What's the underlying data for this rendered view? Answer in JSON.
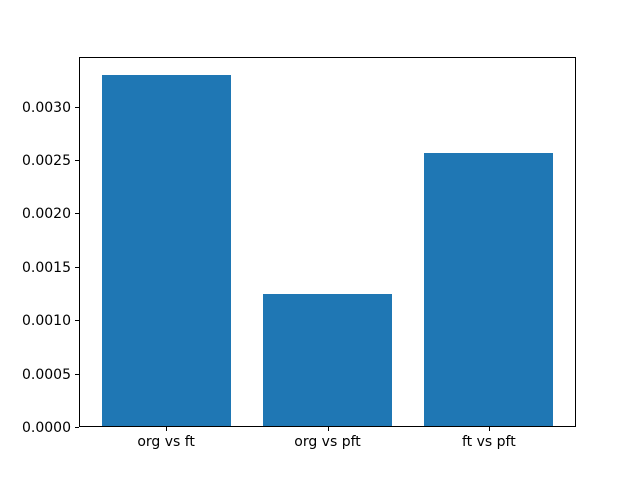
{
  "figure": {
    "background": "#ffffff"
  },
  "chart_data": {
    "type": "bar",
    "title": "",
    "xlabel": "",
    "ylabel": "",
    "categories": [
      "org vs ft",
      "org vs pft",
      "ft vs pft"
    ],
    "values": [
      0.0033,
      0.00125,
      0.00257
    ],
    "bar_color": "#1f77b4",
    "axis_color": "#000000",
    "ylim": [
      0,
      0.003465
    ],
    "ytick_values": [
      0.0,
      0.0005,
      0.001,
      0.0015,
      0.002,
      0.0025,
      0.003
    ],
    "ytick_labels": [
      "0.0000",
      "0.0005",
      "0.0010",
      "0.0015",
      "0.0020",
      "0.0025",
      "0.0030"
    ],
    "grid": false,
    "legend_position": "none"
  }
}
